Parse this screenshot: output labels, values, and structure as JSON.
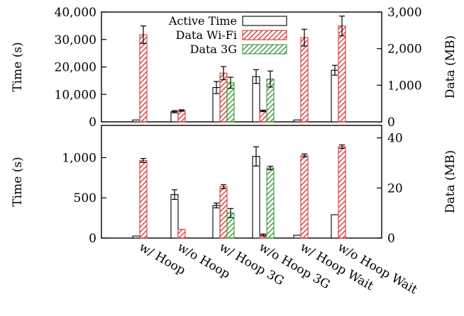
{
  "chart_data": {
    "type": "bar",
    "categories": [
      "w/ Hoop",
      "w/o Hoop",
      "w/ Hoop 3G",
      "w/o Hoop 3G",
      "w/ Hoop Wait",
      "w/o Hoop Wait"
    ],
    "legend": {
      "placement": "top-right of upper panel",
      "entries": [
        "Active Time",
        "Data Wi-Fi",
        "Data 3G"
      ]
    },
    "series_styles": [
      {
        "name": "Active Time",
        "fill": "none",
        "stroke": "#000000"
      },
      {
        "name": "Data Wi-Fi",
        "fill": "hatch",
        "stroke": "#d93a3a"
      },
      {
        "name": "Data 3G",
        "fill": "hatch",
        "stroke": "#3a9a3a"
      }
    ],
    "panels": [
      {
        "ylabel_left": "Time (s)",
        "ylabel_right": "Data (MB)",
        "ylim_left": [
          0,
          40000
        ],
        "ylim_right": [
          0,
          3000
        ],
        "yticks_left": [
          "0",
          "10,000",
          "20,000",
          "30,000",
          "40,000"
        ],
        "yticks_right": [
          "0",
          "1,000",
          "2,000",
          "3,000"
        ],
        "series": [
          {
            "name": "Active Time",
            "axis": "left",
            "values": [
              700,
              3700,
              12500,
              16500,
              700,
              18800
            ],
            "errors": [
              0,
              400,
              2200,
              2500,
              0,
              1800
            ]
          },
          {
            "name": "Data Wi-Fi",
            "axis": "right",
            "values": [
              2380,
              310,
              1330,
              300,
              2300,
              2620
            ],
            "errors": [
              240,
              20,
              180,
              20,
              230,
              270
            ]
          },
          {
            "name": "Data 3G",
            "axis": "right",
            "values": [
              0,
              0,
              1070,
              1170,
              0,
              0
            ],
            "errors": [
              0,
              0,
              150,
              220,
              0,
              0
            ]
          }
        ]
      },
      {
        "ylabel_left": "Time (s)",
        "ylabel_right": "Data (MB)",
        "ylim_left": [
          0,
          1400
        ],
        "ylim_right": [
          0,
          45
        ],
        "yticks_left": [
          "0",
          "500",
          "1,000"
        ],
        "yticks_right": [
          "0",
          "20",
          "40"
        ],
        "series": [
          {
            "name": "Active Time",
            "axis": "left",
            "values": [
              25,
              540,
              405,
              1015,
              35,
              290
            ],
            "errors": [
              0,
              60,
              30,
              120,
              0,
              0
            ]
          },
          {
            "name": "Data Wi-Fi",
            "axis": "right",
            "values": [
              31,
              3.5,
              20.5,
              1.2,
              33,
              36.5
            ],
            "errors": [
              0.8,
              0,
              0.8,
              0.4,
              0.6,
              0.7
            ]
          },
          {
            "name": "Data 3G",
            "axis": "right",
            "values": [
              0,
              0,
              10,
              28,
              0,
              0
            ],
            "errors": [
              0,
              0,
              1.8,
              0.7,
              0,
              0
            ]
          }
        ]
      }
    ]
  }
}
